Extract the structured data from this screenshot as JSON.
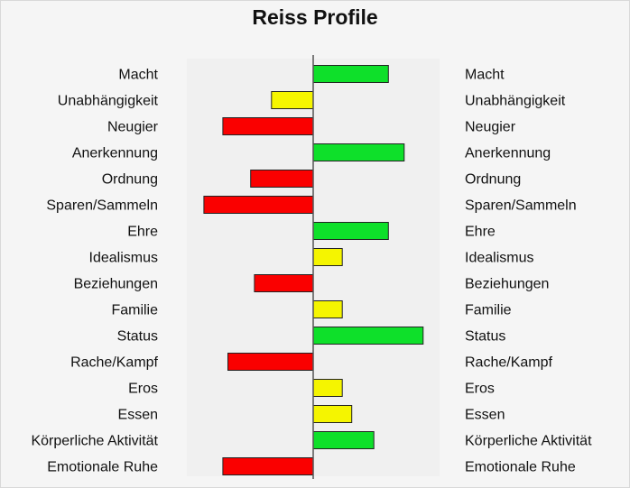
{
  "chart_data": {
    "type": "bar",
    "orientation": "horizontal",
    "title": "Reiss Profile",
    "xlim": [
      -2,
      2
    ],
    "grid": false,
    "legend": "none",
    "categories": [
      "Macht",
      "Unabhängigkeit",
      "Neugier",
      "Anerkennung",
      "Ordnung",
      "Sparen/Sammeln",
      "Ehre",
      "Idealismus",
      "Beziehungen",
      "Familie",
      "Status",
      "Rache/Kampf",
      "Eros",
      "Essen",
      "Körperliche Aktivität",
      "Emotionale Ruhe"
    ],
    "values": [
      1.19,
      -0.66,
      -1.43,
      1.44,
      -0.99,
      -1.73,
      1.19,
      0.46,
      -0.93,
      0.46,
      1.74,
      -1.35,
      0.46,
      0.61,
      0.96,
      -1.43
    ],
    "bar_colors": [
      "#0ee02a",
      "#f5f500",
      "#fa0000",
      "#0ee02a",
      "#fa0000",
      "#fa0000",
      "#0ee02a",
      "#f5f500",
      "#fa0000",
      "#f5f500",
      "#0ee02a",
      "#fa0000",
      "#f5f500",
      "#f5f500",
      "#0ee02a",
      "#fa0000"
    ],
    "plot_background": "#f0f0f0"
  }
}
